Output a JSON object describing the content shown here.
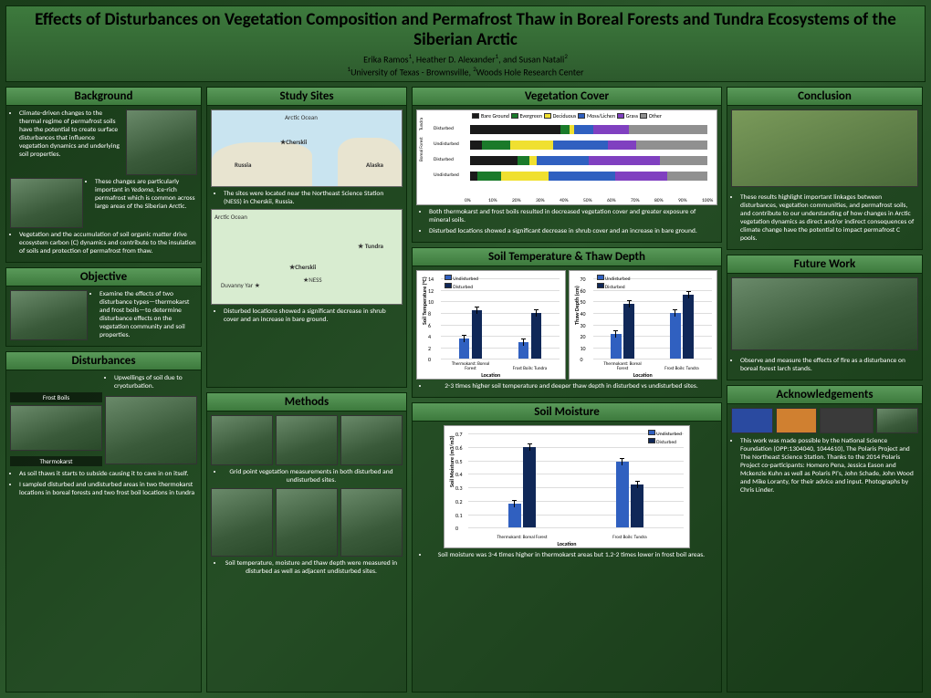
{
  "title": "Effects of Disturbances on Vegetation Composition and Permafrost Thaw in Boreal Forests and Tundra Ecosystems of the Siberian Arctic",
  "authors_html": "Erika Ramos<sup>1</sup>, Heather D. Alexander<sup>1</sup>, and Susan Natali<sup>2</sup>",
  "affil_html": "<sup>1</sup>University of Texas - Brownsville, <sup>2</sup>Woods Hole Research Center",
  "headers": {
    "background": "Background",
    "objective": "Objective",
    "disturbances": "Disturbances",
    "studysites": "Study Sites",
    "methods": "Methods",
    "vegcover": "Vegetation Cover",
    "soiltemp": "Soil Temperature & Thaw Depth",
    "soilmoist": "Soil Moisture",
    "conclusion": "Conclusion",
    "futurework": "Future Work",
    "ack": "Acknowledgements"
  },
  "background": {
    "b1": "Climate-driven changes to the thermal regime of permafrost soils have the potential to create surface disturbances that influence vegetation dynamics and underlying soil properties.",
    "b2_html": "These changes are particularly important in <em>Yedoma</em>, ice-rich permafrost which is common across large areas of the Siberian Arctic.",
    "b3": "Vegetation and the accumulation of soil organic matter drive ecosystem carbon (C) dynamics and contribute to the insulation of soils and protection of permafrost from thaw."
  },
  "objective": {
    "o1": "Examine the effects of two disturbance types—thermokarst and frost boils—to determine disturbance effects on the vegetation community and soil properties."
  },
  "disturbances": {
    "d1": "Upwellings of soil due to cryoturbation.",
    "frostboils": "Frost Boils",
    "thermokarst": "Thermokarst",
    "d2": "As soil thaws it starts to subside causing it to cave in on itself.",
    "d3": "I sampled disturbed and undisturbed areas in two thermokarst locations in boreal forests and two frost boil locations in tundra"
  },
  "studysites": {
    "s1": "The sites were located near the Northeast Science Station (NESS) in Cherskii, Russia.",
    "s2": "Disturbed locations showed a significant decrease in shrub cover and an increase in bare ground.",
    "map1": {
      "arctic": "Arctic Ocean",
      "russia": "Russia",
      "alaska": "Alaska",
      "cherskii": "Cherskii"
    },
    "map2": {
      "arctic": "Arctic Ocean",
      "tundra": "Tundra",
      "cherskii": "Cherskii",
      "ness": "NESS",
      "duvanny": "Duvanny Yar"
    }
  },
  "methods": {
    "m1": "Grid point vegetation measurements in both disturbed and undisturbed sites.",
    "m2": "Soil temperature, moisture and thaw depth were measured in disturbed as well as adjacent undisturbed sites."
  },
  "vegcover": {
    "legend": [
      "Bare Ground",
      "Evergreen",
      "Deciduous",
      "Moss/Lichen",
      "Grass",
      "Other"
    ],
    "colors": [
      "#1a1a1a",
      "#1a7a2a",
      "#f0e030",
      "#3060c0",
      "#8040c0",
      "#909090"
    ],
    "rowlabels_left": [
      "Tundra",
      "Boreal Forest"
    ],
    "rowlabels": [
      "Disturbed",
      "Undisturbed",
      "Disturbed",
      "Undisturbed"
    ],
    "data": [
      [
        38,
        4,
        2,
        8,
        15,
        33
      ],
      [
        5,
        12,
        18,
        23,
        12,
        30
      ],
      [
        20,
        5,
        3,
        22,
        30,
        20
      ],
      [
        3,
        10,
        20,
        28,
        22,
        17
      ]
    ],
    "xticks": [
      "0%",
      "10%",
      "20%",
      "30%",
      "40%",
      "50%",
      "60%",
      "70%",
      "80%",
      "90%",
      "100%"
    ],
    "c1": "Both thermokarst and frost boils resulted in decreased vegetation cover and greater exposure of mineral soils.",
    "c2": "Disturbed locations showed a significant decrease in shrub cover and an increase in bare ground."
  },
  "soiltemp": {
    "chart1": {
      "ylabel": "Soil Temperature (°C)",
      "xlabel": "Location",
      "ymax": 14,
      "yticks": [
        0,
        2,
        4,
        6,
        8,
        10,
        12,
        14
      ],
      "cats": [
        "Thermokarst: Boreal Forest",
        "Frost Boils: Tundra"
      ],
      "undisturbed": [
        3.5,
        3.0
      ],
      "disturbed": [
        8.5,
        8.0
      ],
      "colors": {
        "und": "#3060c0",
        "dis": "#102858"
      }
    },
    "chart2": {
      "ylabel": "Thaw Depth (cm)",
      "xlabel": "Location",
      "ymax": 70,
      "yticks": [
        0,
        10,
        20,
        30,
        40,
        50,
        60,
        70
      ],
      "cats": [
        "Thermokarst: Boreal Forest",
        "Frost Boils: Tundra"
      ],
      "undisturbed": [
        22,
        40
      ],
      "disturbed": [
        48,
        56
      ],
      "colors": {
        "und": "#3060c0",
        "dis": "#102858"
      }
    },
    "legend": {
      "und": "Undisturbed",
      "dis": "Disturbed"
    },
    "caption": "2-3 times higher soil temperature and deeper thaw depth in disturbed vs undisturbed sites."
  },
  "soilmoist": {
    "ylabel": "Soil Moisture (m3/m3)",
    "xlabel": "Location",
    "ymax": 0.7,
    "yticks": [
      "0",
      "0.1",
      "0.2",
      "0.3",
      "0.4",
      "0.5",
      "0.6",
      "0.7"
    ],
    "cats": [
      "Thermokarst: Boreal Forest",
      "Frost Boils: Tundra"
    ],
    "undisturbed": [
      0.18,
      0.49
    ],
    "disturbed": [
      0.6,
      0.32
    ],
    "colors": {
      "und": "#3060c0",
      "dis": "#102858"
    },
    "legend": {
      "und": "Undisturbed",
      "dis": "Disturbed"
    },
    "caption": "Soil moisture was 3-4 times higher in thermokarst areas but 1.2-2 times lower in frost boil areas."
  },
  "conclusion": {
    "c1": "These results highlight important linkages between disturbances, vegetation communities, and permafrost soils, and contribute to our understanding of how changes in Arctic vegetation dynamics as direct and/or indirect consequences of climate change have the potential to impact permafrost C pools."
  },
  "futurework": {
    "f1": "Observe and measure the effects of fire as a disturbance on boreal forest larch stands."
  },
  "ack": {
    "a1": "This work was made possible by the National Science Foundation (OPP:1304040, 1044610), The Polaris Project and The Northeast Science Station. Thanks to the 2014 Polaris Project co-participants: Homero Pena, Jessica Eason and Mckenzie Kuhn as well as Polaris PI's, John Schade, John Wood and Mike Loranty, for their advice and input. Photographs by Chris Linder."
  }
}
